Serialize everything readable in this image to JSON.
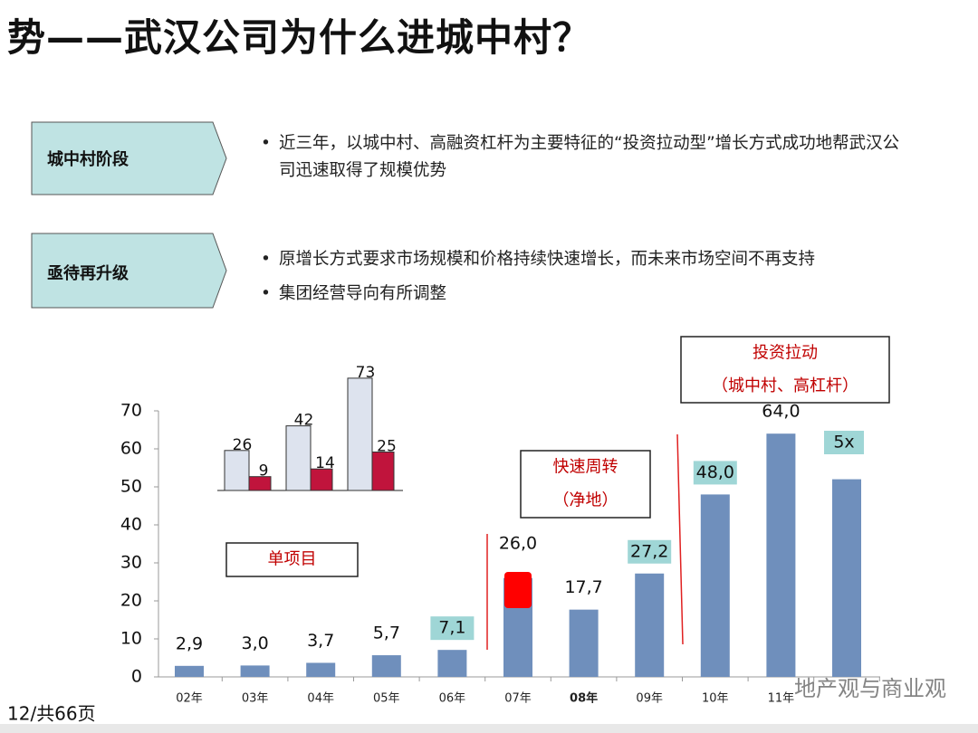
{
  "slide": {
    "title": "势——武汉公司为什么进城中村？",
    "stages": [
      {
        "label": "城中村阶段",
        "bullets": [
          "近三年，以城中村、高融资杠杆为主要特征的“投资拉动型”增长方式成功地帮武汉公司迅速取得了规模优势"
        ]
      },
      {
        "label": "亟待再升级",
        "bullets": [
          "原增长方式要求市场规模和价格持续快速增长，而未来市场空间不再支持",
          "集团经营导向有所调整"
        ]
      }
    ],
    "footer": "12/共66页",
    "watermark": "地产观与商业观"
  },
  "chart_data": [
    {
      "type": "bar",
      "categories": [
        "02年",
        "03年",
        "04年",
        "05年",
        "06年",
        "07年",
        "08年",
        "09年",
        "10年",
        "11年",
        null
      ],
      "values": [
        2.9,
        3.0,
        3.7,
        5.7,
        7.1,
        26.0,
        17.7,
        27.2,
        48.0,
        64.0,
        52
      ],
      "value_labels": [
        "2,9",
        "3,0",
        "3,7",
        "5,7",
        "7,1",
        "26,0",
        "17,7",
        "27,2",
        "48,0",
        "64,0",
        null
      ],
      "label_highlight": [
        false,
        false,
        false,
        false,
        true,
        false,
        false,
        true,
        true,
        false,
        false
      ],
      "bold_category": [
        false,
        false,
        false,
        false,
        false,
        false,
        true,
        false,
        false,
        false,
        false
      ],
      "color": "#6f8fbc",
      "highlight_color": "#9fd6d6",
      "accent_color": "#ff0000",
      "ylim": [
        0,
        70
      ],
      "yticks": [
        0,
        10,
        20,
        30,
        40,
        50,
        60,
        70
      ],
      "annotations": [
        {
          "lines": [
            "单项目"
          ]
        },
        {
          "lines": [
            "快速周转",
            "（净地）"
          ]
        },
        {
          "lines": [
            "投资拉动",
            "（城中村、高杠杆）"
          ]
        },
        {
          "lines": [
            "5x"
          ]
        }
      ]
    },
    {
      "type": "bar",
      "series": [
        {
          "color": "#dde3ee",
          "values": [
            26,
            42,
            73
          ]
        },
        {
          "color": "#c0143c",
          "values": [
            9,
            14,
            25
          ]
        }
      ]
    }
  ]
}
